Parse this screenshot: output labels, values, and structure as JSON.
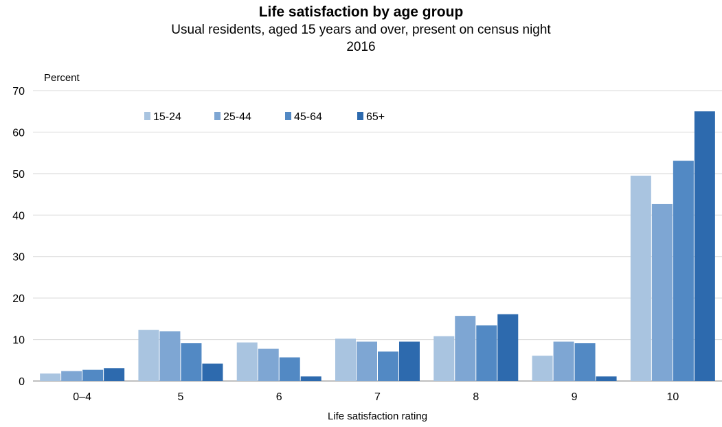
{
  "chart_data": {
    "type": "bar",
    "title": "Life satisfaction by age group",
    "subtitle": "Usual residents, aged 15 years and over, present on census night",
    "subtitle2": "2016",
    "ylabel": "Percent",
    "xlabel": "Life satisfaction rating",
    "ylim": [
      0,
      70
    ],
    "yticks": [
      0,
      10,
      20,
      30,
      40,
      50,
      60,
      70
    ],
    "grid": true,
    "legend_position": "top-left",
    "categories": [
      "0–4",
      "5",
      "6",
      "7",
      "8",
      "9",
      "10"
    ],
    "series": [
      {
        "name": "15-24",
        "color": "#a9c4e0",
        "values": [
          1.8,
          12.3,
          9.3,
          10.2,
          10.8,
          6.1,
          49.5
        ]
      },
      {
        "name": "25-44",
        "color": "#7ea6d3",
        "values": [
          2.4,
          12.0,
          7.8,
          9.5,
          15.7,
          9.5,
          42.7
        ]
      },
      {
        "name": "45-64",
        "color": "#5289c4",
        "values": [
          2.7,
          9.1,
          5.7,
          7.1,
          13.4,
          9.1,
          53.1
        ]
      },
      {
        "name": "65+",
        "color": "#2d6aae",
        "values": [
          3.1,
          4.2,
          1.1,
          9.5,
          16.1,
          1.1,
          65.0
        ]
      }
    ]
  }
}
